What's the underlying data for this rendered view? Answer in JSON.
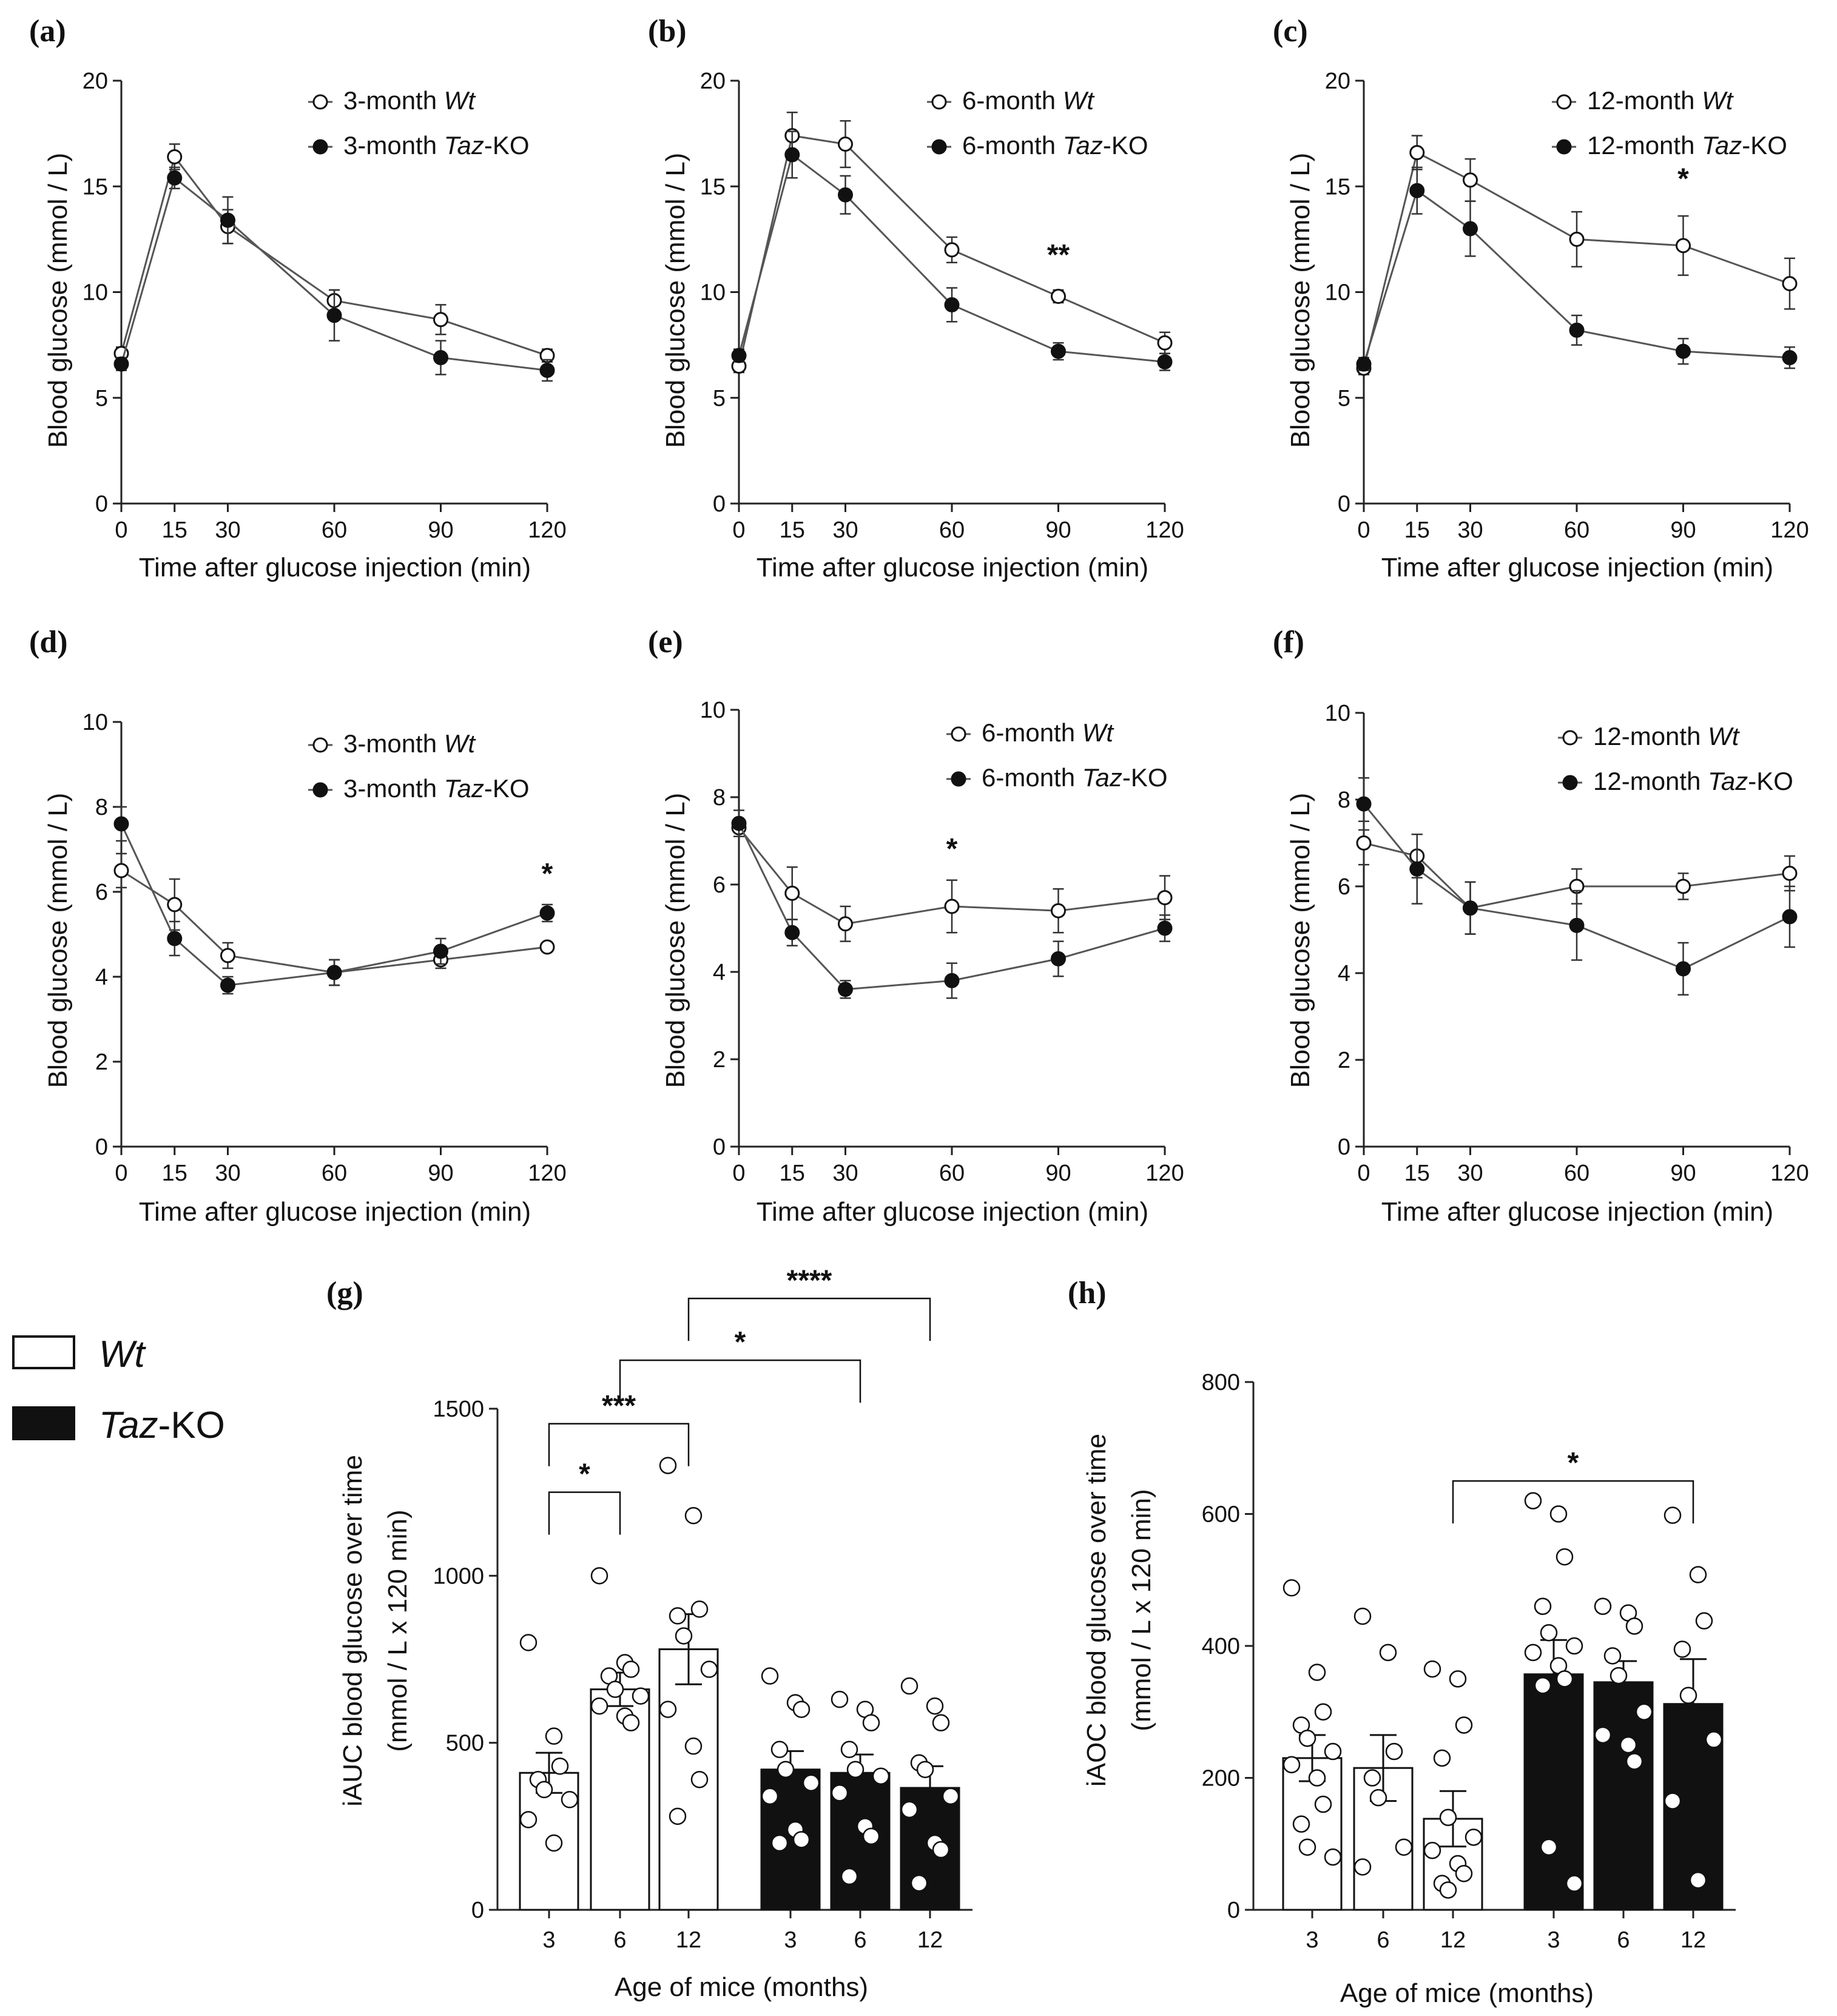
{
  "line_panels": [
    {
      "id": "a",
      "letter": "(a)",
      "ymax": 20,
      "yticks": [
        0,
        5,
        10,
        15,
        20
      ],
      "wt_label": "3-month ",
      "ko_label": "3-month ",
      "wt_sym": "Wt",
      "ko_sym": "Taz",
      "ko_suffix": "-KO",
      "ylabel": "Blood glucose (mmol / L)",
      "xlabel": "Time after glucose injection (min)",
      "stars": []
    },
    {
      "id": "b",
      "letter": "(b)",
      "ymax": 20,
      "yticks": [
        0,
        5,
        10,
        15,
        20
      ],
      "wt_label": "6-month ",
      "ko_label": "6-month ",
      "wt_sym": "Wt",
      "ko_sym": "Taz",
      "ko_suffix": "-KO",
      "ylabel": "Blood glucose (mmol / L)",
      "xlabel": "Time after glucose injection (min)",
      "stars": [
        {
          "x": 90,
          "y": 11.3,
          "text": "**"
        }
      ]
    },
    {
      "id": "c",
      "letter": "(c)",
      "ymax": 20,
      "yticks": [
        0,
        5,
        10,
        15,
        20
      ],
      "wt_label": "12-month ",
      "ko_label": "12-month ",
      "wt_sym": "Wt",
      "ko_sym": "Taz",
      "ko_suffix": "-KO",
      "ylabel": "Blood glucose (mmol / L)",
      "xlabel": "Time after glucose injection (min)",
      "stars": [
        {
          "x": 90,
          "y": 14.9,
          "text": "*"
        }
      ]
    },
    {
      "id": "d",
      "letter": "(d)",
      "ymax": 10,
      "yticks": [
        0,
        2,
        4,
        6,
        8,
        10
      ],
      "wt_label": "3-month ",
      "ko_label": "3-month ",
      "wt_sym": "Wt",
      "ko_sym": "Taz",
      "ko_suffix": "-KO",
      "ylabel": "Blood glucose (mmol / L)",
      "xlabel": "Time after glucose injection (min)",
      "stars": [
        {
          "x": 120,
          "y": 6.2,
          "text": "*"
        }
      ]
    },
    {
      "id": "e",
      "letter": "(e)",
      "ymax": 10,
      "yticks": [
        0,
        2,
        4,
        6,
        8,
        10
      ],
      "wt_label": "6-month ",
      "ko_label": "6-month ",
      "wt_sym": "Wt",
      "ko_sym": "Taz",
      "ko_suffix": "-KO",
      "ylabel": "Blood glucose (mmol / L)",
      "xlabel": "Time after glucose injection (min)",
      "stars": [
        {
          "x": 60,
          "y": 6.6,
          "text": "*"
        }
      ]
    },
    {
      "id": "f",
      "letter": "(f)",
      "ymax": 10,
      "yticks": [
        0,
        2,
        4,
        6,
        8,
        10
      ],
      "wt_label": "12-month ",
      "ko_label": "12-month ",
      "wt_sym": "Wt",
      "ko_sym": "Taz",
      "ko_suffix": "-KO",
      "ylabel": "Blood glucose (mmol / L)",
      "xlabel": "Time after glucose injection (min)",
      "stars": []
    }
  ],
  "bar_panels": [
    {
      "id": "g",
      "letter": "(g)",
      "ymax": 1500,
      "yticks": [
        0,
        500,
        1000,
        1500
      ],
      "ylabel_1": "iAUC blood glucose over time",
      "ylabel_2": "(mmol / L x 120 min)",
      "xlabel": "Age of mice (months)",
      "categories": [
        "3",
        "6",
        "12",
        "3",
        "6",
        "12"
      ],
      "brackets": [
        {
          "a": 0,
          "b": 1,
          "y": 1250,
          "text": "*"
        },
        {
          "a": 0,
          "b": 2,
          "y": 1455,
          "text": "***"
        },
        {
          "a": 1,
          "b": 4,
          "y": 1645,
          "text": "*"
        },
        {
          "a": 2,
          "b": 5,
          "y": 1830,
          "text": "****"
        }
      ]
    },
    {
      "id": "h",
      "letter": "(h)",
      "ymax": 800,
      "yticks": [
        0,
        200,
        400,
        600,
        800
      ],
      "ylabel_1": "iAOC blood glucose over time",
      "ylabel_2": "(mmol / L x 120 min)",
      "xlabel": "Age of mice (months)",
      "categories": [
        "3",
        "6",
        "12",
        "3",
        "6",
        "12"
      ],
      "brackets": [
        {
          "a": 2,
          "b": 5,
          "y": 650,
          "text": "*"
        }
      ]
    }
  ],
  "legend": {
    "wt": "Wt",
    "ko_sym": "Taz",
    "ko_suffix": "-KO"
  },
  "chart_data": [
    {
      "type": "line",
      "panel": "a",
      "title": "(a)",
      "xlabel": "Time after glucose injection (min)",
      "ylabel": "Blood glucose (mmol / L)",
      "ylim": [
        0,
        20
      ],
      "x": [
        0,
        15,
        30,
        60,
        90,
        120
      ],
      "series": [
        {
          "name": "3-month Wt",
          "marker": "open",
          "values": [
            7.1,
            16.4,
            13.1,
            9.6,
            8.7,
            7.0
          ],
          "err": [
            0.3,
            0.6,
            0.8,
            0.5,
            0.7,
            0.3
          ]
        },
        {
          "name": "3-month Taz-KO",
          "marker": "filled",
          "values": [
            6.6,
            15.4,
            13.4,
            8.9,
            6.9,
            6.3
          ],
          "err": [
            0.3,
            0.5,
            1.1,
            1.2,
            0.8,
            0.5
          ]
        }
      ]
    },
    {
      "type": "line",
      "panel": "b",
      "title": "(b)",
      "xlabel": "Time after glucose injection (min)",
      "ylabel": "Blood glucose (mmol / L)",
      "ylim": [
        0,
        20
      ],
      "x": [
        0,
        15,
        30,
        60,
        90,
        120
      ],
      "series": [
        {
          "name": "6-month Wt",
          "marker": "open",
          "values": [
            6.5,
            17.4,
            17.0,
            12.0,
            9.8,
            7.6
          ],
          "err": [
            0.3,
            1.1,
            1.1,
            0.6,
            0.3,
            0.5
          ]
        },
        {
          "name": "6-month Taz-KO",
          "marker": "filled",
          "values": [
            7.0,
            16.5,
            14.6,
            9.4,
            7.2,
            6.7
          ],
          "err": [
            0.3,
            1.1,
            0.9,
            0.8,
            0.4,
            0.4
          ]
        }
      ],
      "annotations": [
        {
          "x": 90,
          "text": "**"
        }
      ]
    },
    {
      "type": "line",
      "panel": "c",
      "title": "(c)",
      "xlabel": "Time after glucose injection (min)",
      "ylabel": "Blood glucose (mmol / L)",
      "ylim": [
        0,
        20
      ],
      "x": [
        0,
        15,
        30,
        60,
        90,
        120
      ],
      "series": [
        {
          "name": "12-month Wt",
          "marker": "open",
          "values": [
            6.4,
            16.6,
            15.3,
            12.5,
            12.2,
            10.4
          ],
          "err": [
            0.3,
            0.8,
            1.0,
            1.3,
            1.4,
            1.2
          ]
        },
        {
          "name": "12-month Taz-KO",
          "marker": "filled",
          "values": [
            6.6,
            14.8,
            13.0,
            8.2,
            7.2,
            6.9
          ],
          "err": [
            0.3,
            1.1,
            1.3,
            0.7,
            0.6,
            0.5
          ]
        }
      ],
      "annotations": [
        {
          "x": 90,
          "text": "*"
        }
      ]
    },
    {
      "type": "line",
      "panel": "d",
      "title": "(d)",
      "xlabel": "Time after glucose injection (min)",
      "ylabel": "Blood glucose (mmol / L)",
      "ylim": [
        0,
        10
      ],
      "x": [
        0,
        15,
        30,
        60,
        90,
        120
      ],
      "series": [
        {
          "name": "3-month Wt",
          "marker": "open",
          "values": [
            6.5,
            5.7,
            4.5,
            4.1,
            4.4,
            4.7
          ],
          "err": [
            0.4,
            0.6,
            0.3,
            0.3,
            0.2,
            0.1
          ]
        },
        {
          "name": "3-month Taz-KO",
          "marker": "filled",
          "values": [
            7.6,
            4.9,
            3.8,
            4.1,
            4.6,
            5.5
          ],
          "err": [
            0.4,
            0.4,
            0.2,
            0.3,
            0.3,
            0.2
          ]
        }
      ],
      "annotations": [
        {
          "x": 120,
          "text": "*"
        }
      ]
    },
    {
      "type": "line",
      "panel": "e",
      "title": "(e)",
      "xlabel": "Time after glucose injection (min)",
      "ylabel": "Blood glucose (mmol / L)",
      "ylim": [
        0,
        10
      ],
      "x": [
        0,
        15,
        30,
        60,
        90,
        120
      ],
      "series": [
        {
          "name": "6-month Wt",
          "marker": "open",
          "values": [
            7.3,
            5.8,
            5.1,
            5.5,
            5.4,
            5.7
          ],
          "err": [
            0.2,
            0.6,
            0.4,
            0.6,
            0.5,
            0.5
          ]
        },
        {
          "name": "6-month Taz-KO",
          "marker": "filled",
          "values": [
            7.4,
            4.9,
            3.6,
            3.8,
            4.3,
            5.0
          ],
          "err": [
            0.3,
            0.3,
            0.2,
            0.4,
            0.4,
            0.3
          ]
        }
      ],
      "annotations": [
        {
          "x": 60,
          "text": "*"
        }
      ]
    },
    {
      "type": "line",
      "panel": "f",
      "title": "(f)",
      "xlabel": "Time after glucose injection (min)",
      "ylabel": "Blood glucose (mmol / L)",
      "ylim": [
        0,
        10
      ],
      "x": [
        0,
        15,
        30,
        60,
        90,
        120
      ],
      "series": [
        {
          "name": "12-month Wt",
          "marker": "open",
          "values": [
            7.0,
            6.7,
            5.5,
            6.0,
            6.0,
            6.3
          ],
          "err": [
            0.5,
            0.5,
            0.6,
            0.4,
            0.3,
            0.4
          ]
        },
        {
          "name": "12-month Taz-KO",
          "marker": "filled",
          "values": [
            7.9,
            6.4,
            5.5,
            5.1,
            4.1,
            5.3
          ],
          "err": [
            0.6,
            0.8,
            0.6,
            0.8,
            0.6,
            0.7
          ]
        }
      ]
    },
    {
      "type": "bar",
      "panel": "g",
      "title": "(g)",
      "xlabel": "Age of mice (months)",
      "ylabel": "iAUC blood glucose over time (mmol / L x 120 min)",
      "ylim": [
        0,
        1500
      ],
      "categories": [
        "3",
        "6",
        "12",
        "3",
        "6",
        "12"
      ],
      "groups": [
        "Wt",
        "Wt",
        "Wt",
        "Taz-KO",
        "Taz-KO",
        "Taz-KO"
      ],
      "values": [
        410,
        660,
        780,
        420,
        410,
        365
      ],
      "err": [
        60,
        50,
        105,
        55,
        55,
        65
      ],
      "points": [
        [
          800,
          520,
          430,
          390,
          360,
          330,
          270,
          200
        ],
        [
          1000,
          740,
          720,
          700,
          660,
          640,
          610,
          580,
          560
        ],
        [
          1330,
          1180,
          900,
          880,
          820,
          720,
          600,
          490,
          390,
          280
        ],
        [
          700,
          620,
          600,
          480,
          420,
          380,
          340,
          240,
          210,
          200
        ],
        [
          630,
          600,
          560,
          480,
          420,
          400,
          350,
          250,
          220,
          100
        ],
        [
          670,
          610,
          560,
          440,
          420,
          340,
          300,
          200,
          180,
          80
        ]
      ],
      "annotations": [
        "*",
        "***",
        "*",
        "****"
      ]
    },
    {
      "type": "bar",
      "panel": "h",
      "title": "(h)",
      "xlabel": "Age of mice (months)",
      "ylabel": "iAOC blood glucose over time (mmol / L x 120 min)",
      "ylim": [
        0,
        800
      ],
      "categories": [
        "3",
        "6",
        "12",
        "3",
        "6",
        "12"
      ],
      "groups": [
        "Wt",
        "Wt",
        "Wt",
        "Taz-KO",
        "Taz-KO",
        "Taz-KO"
      ],
      "values": [
        230,
        215,
        138,
        357,
        345,
        312
      ],
      "err": [
        35,
        50,
        42,
        52,
        32,
        68
      ],
      "points": [
        [
          488,
          360,
          300,
          280,
          260,
          240,
          220,
          200,
          160,
          130,
          95,
          80
        ],
        [
          445,
          390,
          240,
          200,
          170,
          95,
          65
        ],
        [
          365,
          350,
          280,
          230,
          140,
          110,
          90,
          70,
          55,
          40,
          30
        ],
        [
          620,
          600,
          535,
          460,
          420,
          400,
          390,
          370,
          350,
          340,
          95,
          40
        ],
        [
          460,
          450,
          430,
          385,
          355,
          300,
          265,
          250,
          225
        ],
        [
          598,
          508,
          438,
          395,
          325,
          258,
          165,
          45
        ]
      ],
      "annotations": [
        "*"
      ]
    }
  ]
}
